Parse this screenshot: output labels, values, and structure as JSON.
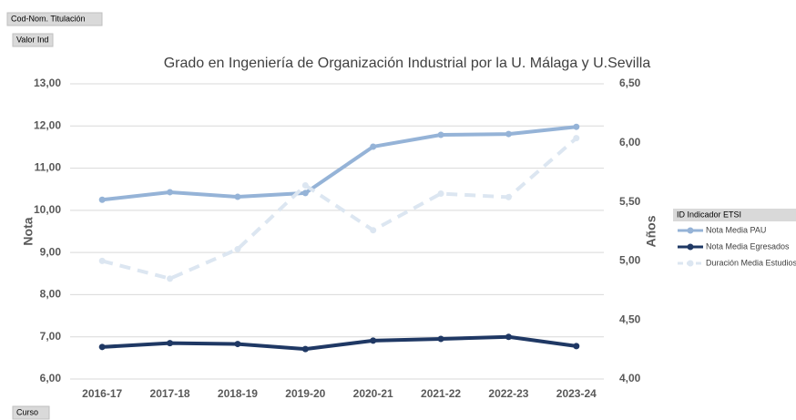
{
  "pivot_buttons": {
    "filter": "Cod-Nom. Titulación",
    "values": "Valor Ind",
    "axis": "Curso"
  },
  "chart_data": {
    "type": "line",
    "title": "Grado en Ingeniería de Organización Industrial por la U. Málaga y U.Sevilla",
    "ylabel": "Nota",
    "y2label": "Años",
    "legend_title": "ID Indicador ETSI",
    "legend": "right",
    "categories": [
      "2016-17",
      "2017-18",
      "2018-19",
      "2019-20",
      "2020-21",
      "2021-22",
      "2022-23",
      "2023-24"
    ],
    "series": [
      {
        "name": "Nota Media PAU",
        "color": "#95b3d7",
        "line_style": "solid",
        "values": [
          10.25,
          10.43,
          10.32,
          10.41,
          11.51,
          11.79,
          11.81,
          11.98
        ]
      },
      {
        "name": "Nota Media Egresados",
        "color": "#1f3864",
        "line_style": "solid",
        "values": [
          6.76,
          6.85,
          6.83,
          6.71,
          6.91,
          6.95,
          7.0,
          6.78
        ]
      },
      {
        "name": "Duración Media Estudios",
        "color": "#dce6f1",
        "line_style": "dashed",
        "axis": "y2",
        "values": [
          5.0,
          4.85,
          5.1,
          5.64,
          5.26,
          5.57,
          5.54,
          6.04
        ]
      }
    ],
    "ylim": [
      6,
      13
    ],
    "yticks": [
      {
        "value": 6,
        "label": "6,00"
      },
      {
        "value": 7,
        "label": "7,00"
      },
      {
        "value": 8,
        "label": "8,00"
      },
      {
        "value": 9,
        "label": "9,00"
      },
      {
        "value": 10,
        "label": "10,00"
      },
      {
        "value": 11,
        "label": "11,00"
      },
      {
        "value": 12,
        "label": "12,00"
      },
      {
        "value": 13,
        "label": "13,00"
      }
    ],
    "y2lim": [
      4,
      6.5
    ],
    "y2ticks": [
      {
        "value": 4,
        "label": "4,00"
      },
      {
        "value": 4.5,
        "label": "4,50"
      },
      {
        "value": 5,
        "label": "5,00"
      },
      {
        "value": 5.5,
        "label": "5,50"
      },
      {
        "value": 6,
        "label": "6,00"
      },
      {
        "value": 6.5,
        "label": "6,50"
      }
    ],
    "grid": true
  }
}
